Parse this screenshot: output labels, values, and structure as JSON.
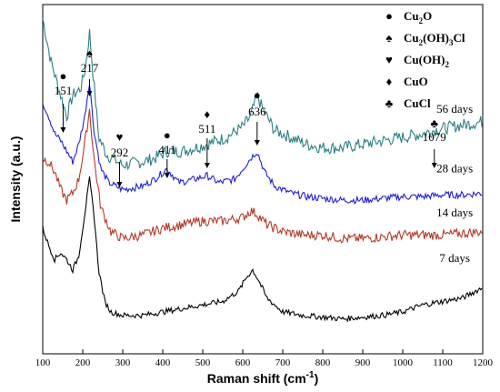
{
  "chart_data": {
    "type": "line",
    "xlabel": "Raman shift (cm",
    "xlabel_sup": "-1",
    "xlabel_end": ")",
    "ylabel": "Intensity (a.u.)",
    "xlim": [
      100,
      1200
    ],
    "xticks": [
      100,
      200,
      300,
      400,
      500,
      600,
      700,
      800,
      900,
      1000,
      1100,
      1200
    ],
    "yticks_visible": false,
    "legend_placement": "top-right",
    "legend": [
      {
        "symbol": "●",
        "parts": [
          {
            "t": "Cu"
          },
          {
            "t": "2",
            "sub": true
          },
          {
            "t": "O"
          }
        ]
      },
      {
        "symbol": "♠",
        "parts": [
          {
            "t": "Cu"
          },
          {
            "t": "2",
            "sub": true
          },
          {
            "t": "(OH)"
          },
          {
            "t": "3",
            "sub": true
          },
          {
            "t": "Cl"
          }
        ]
      },
      {
        "symbol": "♥",
        "parts": [
          {
            "t": "Cu(OH)"
          },
          {
            "t": "2",
            "sub": true
          }
        ]
      },
      {
        "symbol": "♦",
        "parts": [
          {
            "t": "CuO"
          }
        ]
      },
      {
        "symbol": "♣",
        "parts": [
          {
            "t": "CuCl"
          }
        ]
      }
    ],
    "peaks": [
      {
        "x": 151,
        "label": "151",
        "symbol": "●"
      },
      {
        "x": 217,
        "label": "217",
        "symbol": "♠"
      },
      {
        "x": 292,
        "label": "292",
        "symbol": "♥"
      },
      {
        "x": 411,
        "label": "411",
        "symbol": "●"
      },
      {
        "x": 511,
        "label": "511",
        "symbol": "♦"
      },
      {
        "x": 636,
        "label": "636",
        "symbol": "●"
      },
      {
        "x": 1079,
        "label": "1079",
        "symbol": "♣"
      }
    ],
    "series": [
      {
        "name": "56 days",
        "color": "#2f7f86",
        "points": [
          [
            100,
            0.96
          ],
          [
            120,
            0.84
          ],
          [
            140,
            0.76
          ],
          [
            160,
            0.68
          ],
          [
            175,
            0.74
          ],
          [
            195,
            0.76
          ],
          [
            207,
            0.82
          ],
          [
            217,
            0.92
          ],
          [
            226,
            0.8
          ],
          [
            240,
            0.62
          ],
          [
            260,
            0.57
          ],
          [
            300,
            0.54
          ],
          [
            350,
            0.55
          ],
          [
            380,
            0.56
          ],
          [
            411,
            0.58
          ],
          [
            450,
            0.58
          ],
          [
            511,
            0.6
          ],
          [
            560,
            0.62
          ],
          [
            600,
            0.65
          ],
          [
            620,
            0.68
          ],
          [
            636,
            0.74
          ],
          [
            650,
            0.7
          ],
          [
            680,
            0.64
          ],
          [
            720,
            0.62
          ],
          [
            760,
            0.6
          ],
          [
            800,
            0.59
          ],
          [
            850,
            0.59
          ],
          [
            900,
            0.6
          ],
          [
            950,
            0.61
          ],
          [
            1000,
            0.62
          ],
          [
            1050,
            0.63
          ],
          [
            1079,
            0.64
          ],
          [
            1100,
            0.645
          ],
          [
            1150,
            0.655
          ],
          [
            1200,
            0.665
          ]
        ]
      },
      {
        "name": "28 days",
        "color": "#1f1fd6",
        "points": [
          [
            100,
            0.72
          ],
          [
            115,
            0.68
          ],
          [
            130,
            0.63
          ],
          [
            145,
            0.61
          ],
          [
            160,
            0.58
          ],
          [
            175,
            0.55
          ],
          [
            190,
            0.6
          ],
          [
            205,
            0.68
          ],
          [
            217,
            0.78
          ],
          [
            228,
            0.64
          ],
          [
            245,
            0.53
          ],
          [
            265,
            0.49
          ],
          [
            300,
            0.47
          ],
          [
            350,
            0.48
          ],
          [
            380,
            0.5
          ],
          [
            411,
            0.53
          ],
          [
            440,
            0.49
          ],
          [
            480,
            0.5
          ],
          [
            511,
            0.51
          ],
          [
            540,
            0.49
          ],
          [
            580,
            0.5
          ],
          [
            600,
            0.53
          ],
          [
            620,
            0.56
          ],
          [
            636,
            0.58
          ],
          [
            655,
            0.52
          ],
          [
            680,
            0.48
          ],
          [
            720,
            0.46
          ],
          [
            760,
            0.45
          ],
          [
            800,
            0.445
          ],
          [
            850,
            0.44
          ],
          [
            900,
            0.44
          ],
          [
            950,
            0.445
          ],
          [
            1000,
            0.45
          ],
          [
            1050,
            0.45
          ],
          [
            1100,
            0.455
          ],
          [
            1150,
            0.455
          ],
          [
            1200,
            0.46
          ]
        ]
      },
      {
        "name": "14 days",
        "color": "#b23a2a",
        "points": [
          [
            100,
            0.56
          ],
          [
            115,
            0.55
          ],
          [
            130,
            0.52
          ],
          [
            145,
            0.47
          ],
          [
            160,
            0.44
          ],
          [
            175,
            0.46
          ],
          [
            190,
            0.5
          ],
          [
            205,
            0.6
          ],
          [
            217,
            0.7
          ],
          [
            228,
            0.56
          ],
          [
            245,
            0.42
          ],
          [
            270,
            0.35
          ],
          [
            300,
            0.33
          ],
          [
            350,
            0.34
          ],
          [
            400,
            0.36
          ],
          [
            450,
            0.37
          ],
          [
            500,
            0.38
          ],
          [
            550,
            0.38
          ],
          [
            600,
            0.39
          ],
          [
            620,
            0.41
          ],
          [
            636,
            0.4
          ],
          [
            660,
            0.37
          ],
          [
            700,
            0.35
          ],
          [
            750,
            0.34
          ],
          [
            800,
            0.34
          ],
          [
            850,
            0.33
          ],
          [
            900,
            0.33
          ],
          [
            950,
            0.335
          ],
          [
            1000,
            0.34
          ],
          [
            1050,
            0.34
          ],
          [
            1100,
            0.34
          ],
          [
            1150,
            0.345
          ],
          [
            1200,
            0.35
          ]
        ]
      },
      {
        "name": "7 days",
        "color": "#000000",
        "points": [
          [
            100,
            0.36
          ],
          [
            115,
            0.31
          ],
          [
            130,
            0.27
          ],
          [
            145,
            0.29
          ],
          [
            160,
            0.27
          ],
          [
            175,
            0.24
          ],
          [
            190,
            0.28
          ],
          [
            205,
            0.4
          ],
          [
            217,
            0.5
          ],
          [
            228,
            0.4
          ],
          [
            240,
            0.24
          ],
          [
            255,
            0.15
          ],
          [
            270,
            0.12
          ],
          [
            300,
            0.11
          ],
          [
            350,
            0.11
          ],
          [
            400,
            0.12
          ],
          [
            450,
            0.13
          ],
          [
            500,
            0.14
          ],
          [
            550,
            0.15
          ],
          [
            590,
            0.18
          ],
          [
            610,
            0.22
          ],
          [
            625,
            0.24
          ],
          [
            640,
            0.21
          ],
          [
            660,
            0.16
          ],
          [
            700,
            0.12
          ],
          [
            750,
            0.11
          ],
          [
            800,
            0.105
          ],
          [
            850,
            0.1
          ],
          [
            900,
            0.105
          ],
          [
            950,
            0.11
          ],
          [
            1000,
            0.12
          ],
          [
            1050,
            0.14
          ],
          [
            1100,
            0.15
          ],
          [
            1150,
            0.16
          ],
          [
            1200,
            0.19
          ]
        ]
      }
    ],
    "series_labels": [
      {
        "text": "56 days",
        "x": 1130,
        "y": 0.69
      },
      {
        "text": "28 days",
        "x": 1130,
        "y": 0.52
      },
      {
        "text": "14 days",
        "x": 1130,
        "y": 0.393
      },
      {
        "text": "7 days",
        "x": 1130,
        "y": 0.263
      }
    ]
  }
}
